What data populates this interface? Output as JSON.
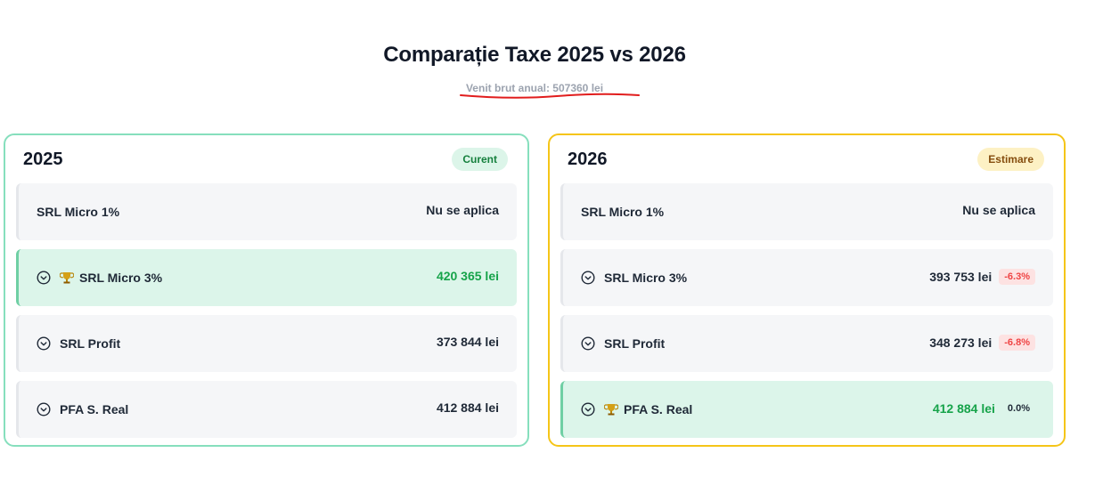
{
  "header": {
    "title": "Comparație Taxe 2025 vs 2026",
    "subtitle": "Venit brut anual: 507360 lei"
  },
  "colors": {
    "panel_2025_border": "#86dfbd",
    "panel_2026_border": "#f5c518",
    "best_row_bg": "#dcf5ea",
    "value_green": "#16a34a",
    "negative_pct": "#ef4444",
    "annotation_underline": "#e11d1d"
  },
  "panels": [
    {
      "year": "2025",
      "badge": "Curent",
      "rows": [
        {
          "label": "SRL Micro 1%",
          "value": "Nu se aplica"
        },
        {
          "label": "SRL Micro 3%",
          "value": "420 365 lei",
          "best": true,
          "icon": "trophy-icon"
        },
        {
          "label": "SRL Profit",
          "value": "373 844 lei"
        },
        {
          "label": "PFA S. Real",
          "value": "412 884 lei"
        }
      ]
    },
    {
      "year": "2026",
      "badge": "Estimare",
      "rows": [
        {
          "label": "SRL Micro 1%",
          "value": "Nu se aplica"
        },
        {
          "label": "SRL Micro 3%",
          "value": "393 753 lei",
          "change": "-6.3%"
        },
        {
          "label": "SRL Profit",
          "value": "348 273 lei",
          "change": "-6.8%"
        },
        {
          "label": "PFA S. Real",
          "value": "412 884 lei",
          "change": "0.0%",
          "best": true,
          "icon": "trophy-icon"
        }
      ]
    }
  ]
}
